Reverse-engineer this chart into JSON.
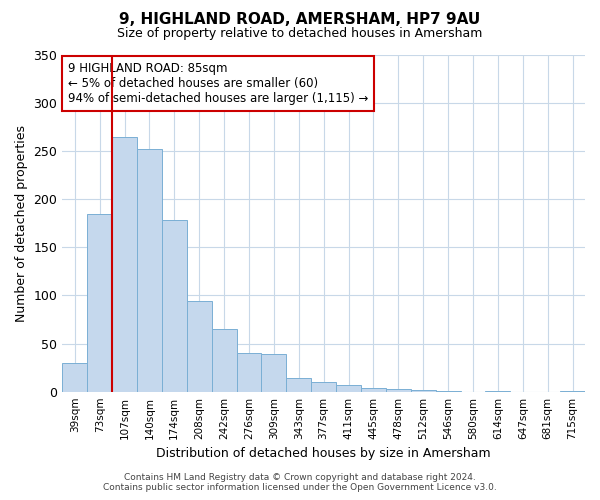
{
  "title": "9, HIGHLAND ROAD, AMERSHAM, HP7 9AU",
  "subtitle": "Size of property relative to detached houses in Amersham",
  "xlabel": "Distribution of detached houses by size in Amersham",
  "ylabel": "Number of detached properties",
  "bar_labels": [
    "39sqm",
    "73sqm",
    "107sqm",
    "140sqm",
    "174sqm",
    "208sqm",
    "242sqm",
    "276sqm",
    "309sqm",
    "343sqm",
    "377sqm",
    "411sqm",
    "445sqm",
    "478sqm",
    "512sqm",
    "546sqm",
    "580sqm",
    "614sqm",
    "647sqm",
    "681sqm",
    "715sqm"
  ],
  "bar_values": [
    30,
    185,
    265,
    252,
    178,
    94,
    65,
    40,
    39,
    14,
    10,
    7,
    4,
    3,
    2,
    1,
    0,
    1,
    0,
    0,
    1
  ],
  "bar_color": "#c5d8ed",
  "bar_edge_color": "#7aafd4",
  "ylim": [
    0,
    350
  ],
  "yticks": [
    0,
    50,
    100,
    150,
    200,
    250,
    300,
    350
  ],
  "vline_color": "#cc0000",
  "vline_x": 1.5,
  "annotation_title": "9 HIGHLAND ROAD: 85sqm",
  "annotation_line2": "← 5% of detached houses are smaller (60)",
  "annotation_line3": "94% of semi-detached houses are larger (1,115) →",
  "annotation_box_color": "#cc0000",
  "footer_line1": "Contains HM Land Registry data © Crown copyright and database right 2024.",
  "footer_line2": "Contains public sector information licensed under the Open Government Licence v3.0.",
  "background_color": "#ffffff",
  "grid_color": "#c8d8e8"
}
